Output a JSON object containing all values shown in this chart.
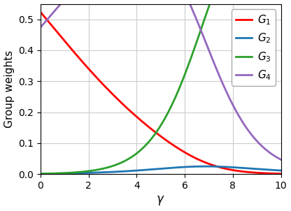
{
  "title": "",
  "xlabel": "$\\gamma$",
  "ylabel": "Group weights",
  "xlim": [
    0,
    10
  ],
  "ylim": [
    0.0,
    0.55
  ],
  "xticks": [
    0,
    2,
    4,
    6,
    8,
    10
  ],
  "yticks": [
    0.0,
    0.1,
    0.2,
    0.3,
    0.4,
    0.5
  ],
  "line_colors": [
    "#FF0000",
    "#1F77B4",
    "#2CA02C",
    "#9467BD"
  ],
  "line_labels": [
    "$G_1$",
    "$G_2$",
    "$G_3$",
    "$G_4$"
  ],
  "background_color": "#FFFFFF",
  "grid_color": "#CCCCCC",
  "figsize": [
    4.16,
    3.02
  ],
  "dpi": 100,
  "gamma_range": [
    0,
    10
  ],
  "gamma_steps": 500,
  "logits_at_0": [
    3.1,
    -3.0,
    -3.0,
    3.0
  ],
  "logit_slopes": [
    -0.55,
    0.28,
    0.72,
    -0.18
  ]
}
